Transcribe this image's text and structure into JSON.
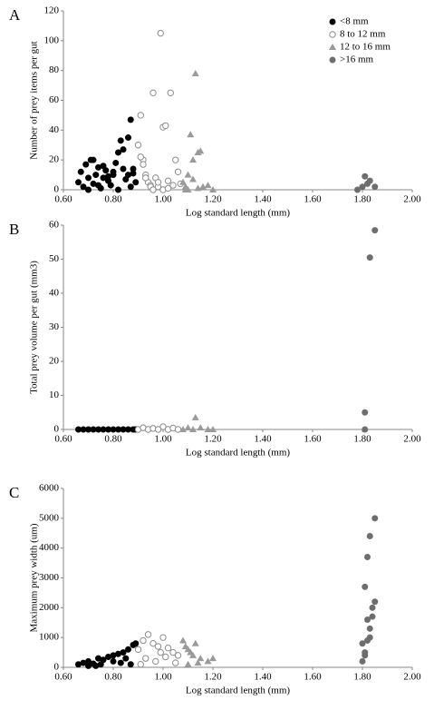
{
  "chart_data": [
    {
      "type": "scatter",
      "panel_label": "A",
      "x_label": "Log standard length (mm)",
      "y_label": "Number of prey items per gut",
      "xlim": [
        0.6,
        2.0
      ],
      "xticks": [
        {
          "value": 0.6,
          "label": "0.60"
        },
        {
          "value": 0.8,
          "label": "0.80"
        },
        {
          "value": 1.0,
          "label": "1.00"
        },
        {
          "value": 1.2,
          "label": "1.20"
        },
        {
          "value": 1.4,
          "label": "1.40"
        },
        {
          "value": 1.6,
          "label": "1.60"
        },
        {
          "value": 1.8,
          "label": "1.80"
        },
        {
          "value": 2.0,
          "label": "2.00"
        }
      ],
      "ylim": [
        0,
        120
      ],
      "yticks": [
        0,
        20,
        40,
        60,
        80,
        100,
        120
      ],
      "legend": "upper right",
      "series": [
        {
          "name": "<8 mm",
          "color": "#000000",
          "marker": "circle",
          "x": [
            0.66,
            0.67,
            0.68,
            0.69,
            0.7,
            0.71,
            0.72,
            0.73,
            0.74,
            0.75,
            0.76,
            0.77,
            0.78,
            0.79,
            0.8,
            0.81,
            0.82,
            0.83,
            0.84,
            0.85,
            0.86,
            0.87,
            0.88,
            0.89,
            0.72,
            0.76,
            0.8,
            0.84,
            0.87,
            0.82,
            0.78,
            0.7,
            0.74,
            0.86,
            0.88
          ],
          "values": [
            5,
            12,
            2,
            17,
            8,
            20,
            4,
            10,
            15,
            1,
            8,
            13,
            6,
            3,
            10,
            18,
            25,
            33,
            14,
            7,
            10,
            47,
            11,
            5,
            20,
            16,
            12,
            27,
            2,
            0,
            9,
            0,
            3,
            35,
            14
          ]
        },
        {
          "name": "8 to 12 mm",
          "color": "#8c8c8c",
          "marker": "open-circle",
          "x": [
            0.9,
            0.91,
            0.92,
            0.93,
            0.94,
            0.95,
            0.96,
            0.97,
            0.98,
            0.99,
            1.0,
            1.01,
            1.02,
            1.03,
            1.05,
            1.06,
            0.92,
            0.95,
            1.0,
            0.98,
            1.04,
            0.91,
            0.96,
            1.07,
            0.93,
            1.02
          ],
          "values": [
            30,
            50,
            20,
            10,
            5,
            3,
            65,
            8,
            2,
            105,
            42,
            43,
            6,
            65,
            20,
            12,
            17,
            2,
            0,
            5,
            3,
            22,
            0,
            4,
            8,
            1
          ]
        },
        {
          "name": "12 to 16 mm",
          "color": "#9a9a9a",
          "marker": "triangle",
          "x": [
            1.08,
            1.09,
            1.1,
            1.11,
            1.12,
            1.13,
            1.14,
            1.15,
            1.16,
            1.1,
            1.12,
            1.18,
            1.2,
            1.09,
            1.14
          ],
          "values": [
            5,
            0,
            10,
            37,
            7,
            78,
            25,
            26,
            2,
            0,
            20,
            3,
            0,
            2,
            1
          ]
        },
        {
          "name": ">16 mm",
          "color": "#6e6e6e",
          "marker": "circle",
          "x": [
            1.78,
            1.8,
            1.81,
            1.82,
            1.83,
            1.85
          ],
          "values": [
            0,
            2,
            9,
            4,
            6,
            2
          ]
        }
      ]
    },
    {
      "type": "scatter",
      "panel_label": "B",
      "x_label": "Log standard length (mm)",
      "y_label": "Total prey volume per gut (mm3)",
      "xlim": [
        0.6,
        2.0
      ],
      "xticks": [
        {
          "value": 0.6,
          "label": "0.60"
        },
        {
          "value": 0.8,
          "label": "0.80"
        },
        {
          "value": 1.0,
          "label": "1.00"
        },
        {
          "value": 1.2,
          "label": "1.20"
        },
        {
          "value": 1.4,
          "label": "1.40"
        },
        {
          "value": 1.6,
          "label": "1.60"
        },
        {
          "value": 1.8,
          "label": "1.80"
        },
        {
          "value": 2.0,
          "label": "2.00"
        }
      ],
      "ylim": [
        0,
        60
      ],
      "yticks": [
        0,
        10,
        20,
        30,
        40,
        50,
        60
      ],
      "series": [
        {
          "color": "#000000",
          "marker": "circle",
          "x": [
            0.66,
            0.68,
            0.7,
            0.72,
            0.74,
            0.76,
            0.78,
            0.8,
            0.82,
            0.84,
            0.86,
            0.88,
            0.89
          ],
          "values": [
            0,
            0,
            0,
            0,
            0,
            0,
            0,
            0,
            0,
            0,
            0,
            0,
            0
          ]
        },
        {
          "color": "#8c8c8c",
          "marker": "open-circle",
          "x": [
            0.9,
            0.92,
            0.94,
            0.96,
            0.98,
            1.0,
            1.02,
            1.04,
            1.06
          ],
          "values": [
            0,
            0.5,
            0,
            0.3,
            0,
            0.8,
            0,
            0.4,
            0
          ]
        },
        {
          "color": "#9a9a9a",
          "marker": "triangle",
          "x": [
            1.08,
            1.1,
            1.12,
            1.13,
            1.15,
            1.18,
            1.2
          ],
          "values": [
            0,
            0.5,
            0,
            3.5,
            0.5,
            0,
            0
          ]
        },
        {
          "color": "#6e6e6e",
          "marker": "circle",
          "x": [
            1.81,
            1.81,
            1.83,
            1.85
          ],
          "values": [
            0,
            5,
            50.5,
            58.5
          ]
        }
      ]
    },
    {
      "type": "scatter",
      "panel_label": "C",
      "x_label": "Log standard length (mm)",
      "y_label": "Maximum prey width (um)",
      "xlim": [
        0.6,
        2.0
      ],
      "xticks": [
        {
          "value": 0.6,
          "label": "0.60"
        },
        {
          "value": 0.8,
          "label": "0.80"
        },
        {
          "value": 1.0,
          "label": "1.00"
        },
        {
          "value": 1.2,
          "label": "1.20"
        },
        {
          "value": 1.4,
          "label": "1.40"
        },
        {
          "value": 1.6,
          "label": "1.60"
        },
        {
          "value": 1.8,
          "label": "1.80"
        },
        {
          "value": 2.0,
          "label": "2.00"
        }
      ],
      "ylim": [
        0,
        6000
      ],
      "yticks": [
        0,
        1000,
        2000,
        3000,
        4000,
        5000,
        6000
      ],
      "series": [
        {
          "color": "#000000",
          "marker": "circle",
          "x": [
            0.66,
            0.68,
            0.7,
            0.72,
            0.74,
            0.76,
            0.78,
            0.8,
            0.82,
            0.84,
            0.86,
            0.88,
            0.89,
            0.7,
            0.75,
            0.8,
            0.85,
            0.87,
            0.73,
            0.83
          ],
          "values": [
            100,
            150,
            200,
            120,
            300,
            250,
            350,
            400,
            450,
            500,
            600,
            750,
            800,
            50,
            100,
            200,
            300,
            100,
            50,
            150
          ]
        },
        {
          "color": "#8c8c8c",
          "marker": "open-circle",
          "x": [
            0.9,
            0.92,
            0.94,
            0.96,
            0.98,
            1.0,
            1.02,
            1.04,
            1.06,
            0.93,
            0.97,
            1.01,
            1.05,
            0.91,
            0.99
          ],
          "values": [
            600,
            900,
            1100,
            800,
            700,
            1000,
            650,
            500,
            400,
            300,
            200,
            350,
            150,
            100,
            500
          ]
        },
        {
          "color": "#9a9a9a",
          "marker": "triangle",
          "x": [
            1.08,
            1.09,
            1.1,
            1.11,
            1.12,
            1.13,
            1.15,
            1.18,
            1.2,
            1.1,
            1.14
          ],
          "values": [
            900,
            700,
            600,
            500,
            400,
            800,
            300,
            200,
            300,
            100,
            150
          ]
        },
        {
          "color": "#6e6e6e",
          "marker": "circle",
          "x": [
            1.8,
            1.81,
            1.82,
            1.83,
            1.84,
            1.85,
            1.81,
            1.82,
            1.83,
            1.8,
            1.84,
            1.82,
            1.81,
            1.85,
            1.83
          ],
          "values": [
            200,
            500,
            900,
            1300,
            1700,
            2200,
            2700,
            3700,
            4400,
            800,
            2000,
            1600,
            400,
            5000,
            1000
          ]
        }
      ]
    }
  ]
}
